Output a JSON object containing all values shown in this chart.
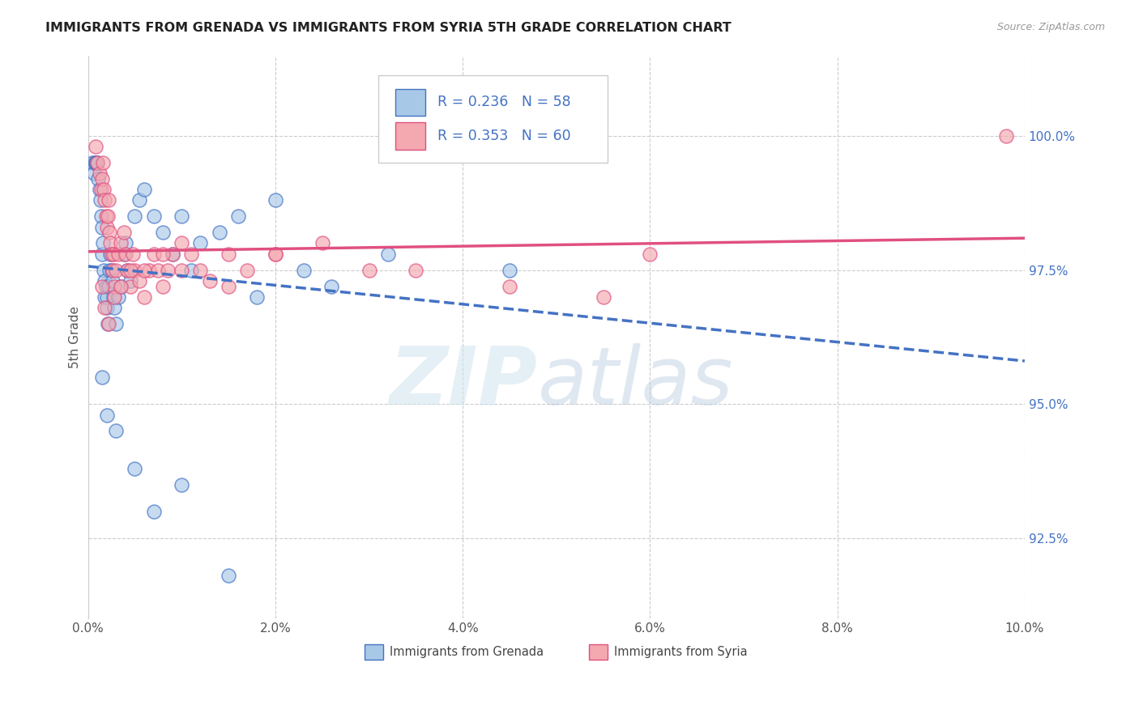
{
  "title": "IMMIGRANTS FROM GRENADA VS IMMIGRANTS FROM SYRIA 5TH GRADE CORRELATION CHART",
  "source": "Source: ZipAtlas.com",
  "ylabel": "5th Grade",
  "legend_label1": "Immigrants from Grenada",
  "legend_label2": "Immigrants from Syria",
  "r1": 0.236,
  "n1": 58,
  "r2": 0.353,
  "n2": 60,
  "color1": "#a8c8e8",
  "color2": "#f4a8b0",
  "trendline1_color": "#4472c4",
  "trendline2_color": "#e05080",
  "xlim": [
    0.0,
    10.0
  ],
  "ylim": [
    91.0,
    101.5
  ],
  "yticks": [
    92.5,
    95.0,
    97.5,
    100.0
  ],
  "ytick_labels": [
    "92.5%",
    "95.0%",
    "97.5%",
    "100.0%"
  ],
  "xticks": [
    0.0,
    2.0,
    4.0,
    6.0,
    8.0,
    10.0
  ],
  "xtick_labels": [
    "0.0%",
    "2.0%",
    "4.0%",
    "6.0%",
    "8.0%",
    "10.0%"
  ],
  "watermark_zip": "ZIP",
  "watermark_atlas": "atlas",
  "background_color": "#ffffff",
  "grid_color": "#cccccc",
  "scatter1_x": [
    0.05,
    0.06,
    0.07,
    0.08,
    0.09,
    0.1,
    0.11,
    0.12,
    0.13,
    0.14,
    0.15,
    0.15,
    0.16,
    0.17,
    0.18,
    0.18,
    0.19,
    0.2,
    0.2,
    0.21,
    0.22,
    0.23,
    0.24,
    0.25,
    0.26,
    0.27,
    0.28,
    0.3,
    0.32,
    0.35,
    0.38,
    0.4,
    0.42,
    0.45,
    0.5,
    0.55,
    0.6,
    0.7,
    0.8,
    0.9,
    1.0,
    1.1,
    1.2,
    1.4,
    1.6,
    1.8,
    2.0,
    2.3,
    2.6,
    3.2,
    4.5,
    0.15,
    0.2,
    0.3,
    0.5,
    0.7,
    1.0,
    1.5
  ],
  "scatter1_y": [
    99.5,
    99.3,
    99.5,
    99.5,
    99.5,
    99.5,
    99.2,
    99.0,
    98.8,
    98.5,
    98.3,
    97.8,
    98.0,
    97.5,
    97.3,
    97.0,
    97.2,
    97.0,
    96.8,
    96.5,
    97.2,
    97.5,
    97.8,
    97.5,
    97.3,
    97.0,
    96.8,
    96.5,
    97.0,
    97.2,
    97.8,
    98.0,
    97.5,
    97.3,
    98.5,
    98.8,
    99.0,
    98.5,
    98.2,
    97.8,
    98.5,
    97.5,
    98.0,
    98.2,
    98.5,
    97.0,
    98.8,
    97.5,
    97.2,
    97.8,
    97.5,
    95.5,
    94.8,
    94.5,
    93.8,
    93.0,
    93.5,
    91.8
  ],
  "scatter2_x": [
    0.08,
    0.1,
    0.12,
    0.14,
    0.15,
    0.16,
    0.17,
    0.18,
    0.19,
    0.2,
    0.21,
    0.22,
    0.23,
    0.24,
    0.25,
    0.26,
    0.27,
    0.28,
    0.3,
    0.32,
    0.35,
    0.38,
    0.4,
    0.42,
    0.45,
    0.48,
    0.5,
    0.55,
    0.6,
    0.65,
    0.7,
    0.75,
    0.8,
    0.85,
    0.9,
    1.0,
    1.1,
    1.2,
    1.3,
    1.5,
    1.7,
    2.0,
    2.5,
    3.0,
    0.15,
    0.18,
    0.22,
    0.28,
    0.35,
    0.45,
    0.6,
    0.8,
    1.0,
    1.5,
    2.0,
    3.5,
    4.5,
    5.5,
    6.0,
    9.8
  ],
  "scatter2_y": [
    99.8,
    99.5,
    99.3,
    99.0,
    99.2,
    99.5,
    99.0,
    98.8,
    98.5,
    98.3,
    98.5,
    98.8,
    98.2,
    98.0,
    97.8,
    97.5,
    97.8,
    97.2,
    97.5,
    97.8,
    98.0,
    98.2,
    97.8,
    97.5,
    97.2,
    97.8,
    97.5,
    97.3,
    97.0,
    97.5,
    97.8,
    97.5,
    97.2,
    97.5,
    97.8,
    98.0,
    97.8,
    97.5,
    97.3,
    97.8,
    97.5,
    97.8,
    98.0,
    97.5,
    97.2,
    96.8,
    96.5,
    97.0,
    97.2,
    97.5,
    97.5,
    97.8,
    97.5,
    97.2,
    97.8,
    97.5,
    97.2,
    97.0,
    97.8,
    100.0
  ]
}
